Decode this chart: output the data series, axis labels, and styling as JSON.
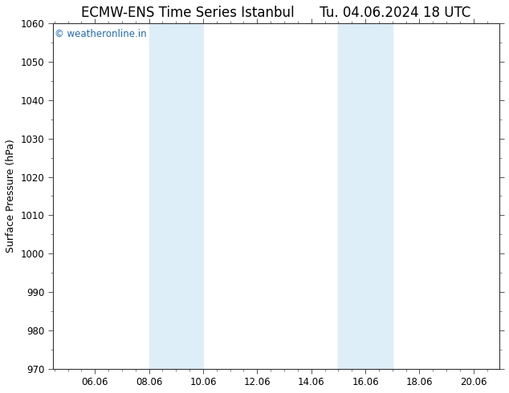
{
  "title_left": "ECMW-ENS Time Series Istanbul",
  "title_right": "Tu. 04.06.2024 18 UTC",
  "ylabel": "Surface Pressure (hPa)",
  "ylim": [
    970,
    1060
  ],
  "yticks": [
    970,
    980,
    990,
    1000,
    1010,
    1020,
    1030,
    1040,
    1050,
    1060
  ],
  "xlim": [
    4.5,
    21.0
  ],
  "xticks": [
    6.06,
    8.06,
    10.06,
    12.06,
    14.06,
    16.06,
    18.06,
    20.06
  ],
  "xticklabels": [
    "06.06",
    "08.06",
    "10.06",
    "12.06",
    "14.06",
    "16.06",
    "18.06",
    "20.06"
  ],
  "background_color": "#ffffff",
  "plot_bg_color": "#ffffff",
  "shaded_bands": [
    {
      "x_start": 8.06,
      "x_end": 10.06
    },
    {
      "x_start": 15.06,
      "x_end": 17.06
    }
  ],
  "shaded_color": "#ddeef8",
  "watermark_text": "© weatheronline.in",
  "watermark_color": "#1a6bbf",
  "title_fontsize": 12,
  "axis_label_fontsize": 9,
  "tick_fontsize": 8.5
}
